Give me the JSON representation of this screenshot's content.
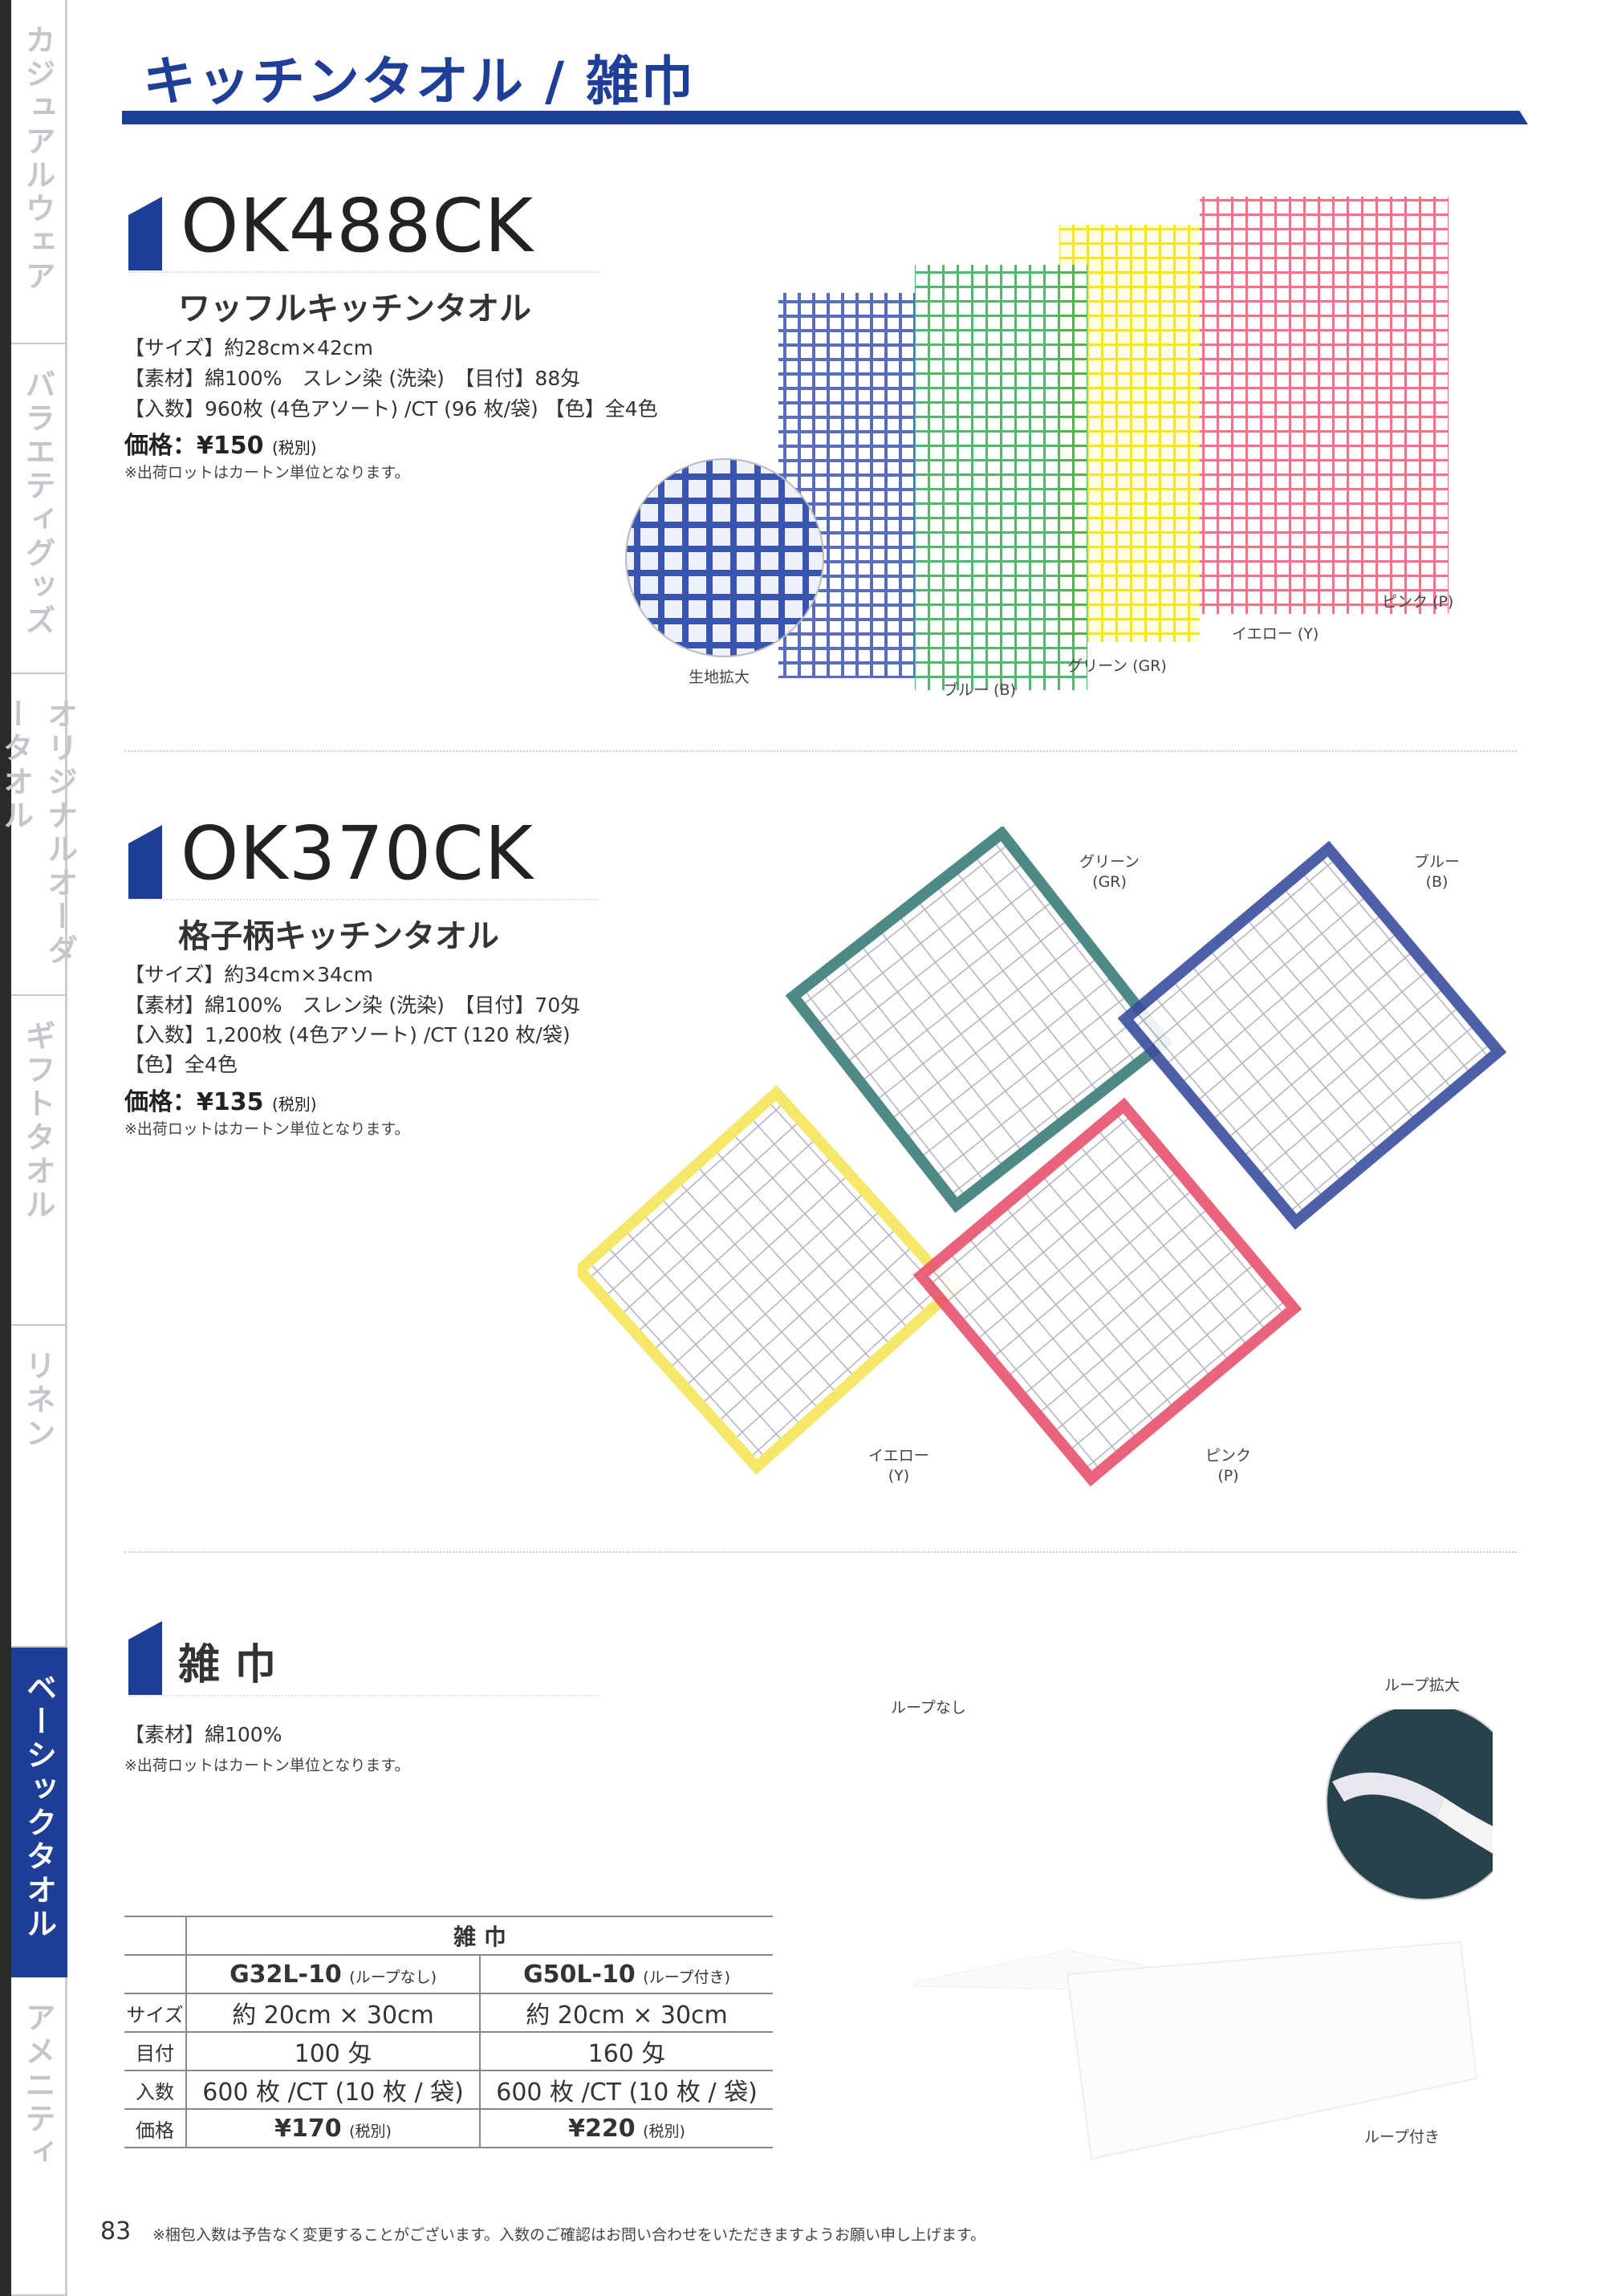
{
  "page_title": "キッチンタオル / 雑巾",
  "sidebar": {
    "tabs": [
      {
        "label": "カジュアルウェア",
        "active": false
      },
      {
        "label": "バラエティグッズ",
        "active": false
      },
      {
        "label": "オリジナルオーダータオル",
        "active": false
      },
      {
        "label": "ギフトタオル",
        "active": false
      },
      {
        "label": "リネン",
        "active": false
      },
      {
        "label": "ベーシックタオル",
        "active": true
      },
      {
        "label": "アメニティ",
        "active": false
      }
    ]
  },
  "products": [
    {
      "model": "OK488CK",
      "name": "ワッフルキッチンタオル",
      "specs": [
        "【サイズ】約28cm×42cm",
        "【素材】綿100%　スレン染 (洗染)　【目付】88匁",
        "【入数】960枚 (4色アソート) /CT (96 枚/袋) 【色】全4色"
      ],
      "price": "価格：¥150",
      "tax": "(税別)",
      "note": "※出荷ロットはカートン単位となります。",
      "image_labels": {
        "zoom": "生地拡大",
        "blue": "ブルー (B)",
        "green": "グリーン (GR)",
        "yellow": "イエロー (Y)",
        "pink": "ピンク (P)"
      }
    },
    {
      "model": "OK370CK",
      "name": "格子柄キッチンタオル",
      "specs": [
        "【サイズ】約34cm×34cm",
        "【素材】綿100%　スレン染 (洗染)　【目付】70匁",
        "【入数】1,200枚 (4色アソート) /CT (120 枚/袋)",
        "【色】全4色"
      ],
      "price": "価格：¥135",
      "tax": "(税別)",
      "note": "※出荷ロットはカートン単位となります。",
      "image_labels": {
        "green": "グリーン",
        "green_code": "(GR)",
        "blue": "ブルー",
        "blue_code": "(B)",
        "yellow": "イエロー",
        "yellow_code": "(Y)",
        "pink": "ピンク",
        "pink_code": "(P)"
      }
    },
    {
      "model": "雑 巾",
      "specs": [
        "【素材】綿100%"
      ],
      "note": "※出荷ロットはカートン単位となります。",
      "image_labels": {
        "no_loop": "ループなし",
        "loop_zoom": "ループ拡大",
        "with_loop": "ループ付き"
      }
    }
  ],
  "table": {
    "title": "雑 巾",
    "columns": [
      {
        "code": "G32L-10",
        "sub": "(ループなし)"
      },
      {
        "code": "G50L-10",
        "sub": "(ループ付き)"
      }
    ],
    "rows": [
      {
        "label": "サイズ",
        "values": [
          "約 20cm × 30cm",
          "約 20cm × 30cm"
        ]
      },
      {
        "label": "目付",
        "values": [
          "100 匁",
          "160 匁"
        ]
      },
      {
        "label": "入数",
        "values": [
          "600 枚 /CT (10 枚 / 袋)",
          "600 枚 /CT (10 枚 / 袋)"
        ]
      },
      {
        "label": "価格",
        "values": [
          "¥170",
          "¥220"
        ],
        "tax": "(税別)"
      }
    ]
  },
  "footer": {
    "page_number": "83",
    "note": "※梱包入数は予告なく変更することがございます。入数のご確認はお問い合わせをいただきますようお願い申し上げます。"
  },
  "colors": {
    "brand": "#1f3e98",
    "blue": "#3a55b0",
    "green": "#3aa857",
    "yellow": "#f2e23a",
    "pink": "#e8536e",
    "teal": "#3d7d7a"
  }
}
